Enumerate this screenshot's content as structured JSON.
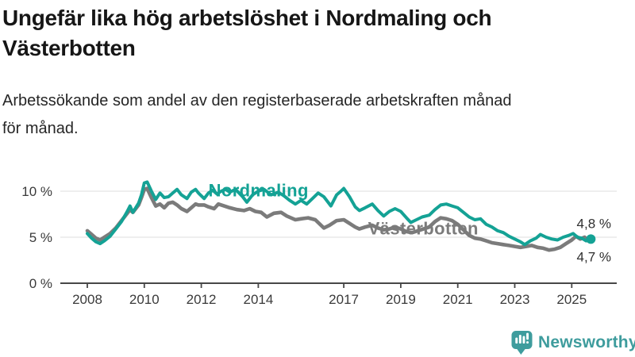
{
  "header": {
    "title_lines": [
      "Ungefär lika hög arbetslöshet i Nordmaling och",
      "Västerbotten"
    ],
    "subtitle_lines": [
      "Arbetssökande som andel av den registerbaserade arbetskraften månad",
      "för månad."
    ]
  },
  "footer": {
    "brand": "Newsworthy",
    "brand_color": "#3E9C9D",
    "logo_icon": "bar-chart-speech-bubble-icon"
  },
  "chart_data": {
    "type": "line",
    "title": "Ungefär lika hög arbetslöshet i Nordmaling och Västerbotten",
    "subtitle": "Arbetssökande som andel av den registerbaserade arbetskraften månad för månad.",
    "grid": "horizontal",
    "legend": "inline-labels",
    "x_axis": {
      "ticks": [
        2008,
        2010,
        2012,
        2014,
        2017,
        2019,
        2021,
        2023,
        2025
      ],
      "range": [
        2007.9,
        2026.6
      ]
    },
    "y_axis": {
      "unit": "%",
      "tick_values": [
        0,
        5,
        10
      ],
      "tick_labels": [
        "0 %",
        "5 %",
        "10 %"
      ],
      "range": [
        0,
        11.5
      ]
    },
    "series": [
      {
        "name": "Västerbotten",
        "color": "#7B7B7B",
        "line_width": 4.6,
        "label_anchor": {
          "year": 2017.85,
          "value": 5.9
        },
        "end_value_label": "4,7 %",
        "end_label_side": "below",
        "end_dot": false,
        "points": [
          [
            2008.0,
            5.7
          ],
          [
            2008.15,
            5.3
          ],
          [
            2008.3,
            4.9
          ],
          [
            2008.45,
            4.7
          ],
          [
            2008.6,
            5.0
          ],
          [
            2008.8,
            5.4
          ],
          [
            2009.0,
            6.0
          ],
          [
            2009.2,
            6.8
          ],
          [
            2009.4,
            7.6
          ],
          [
            2009.5,
            8.0
          ],
          [
            2009.6,
            7.7
          ],
          [
            2009.8,
            8.5
          ],
          [
            2009.9,
            9.3
          ],
          [
            2010.0,
            10.2
          ],
          [
            2010.1,
            10.3
          ],
          [
            2010.25,
            9.3
          ],
          [
            2010.4,
            8.4
          ],
          [
            2010.55,
            8.6
          ],
          [
            2010.7,
            8.2
          ],
          [
            2010.85,
            8.7
          ],
          [
            2011.0,
            8.8
          ],
          [
            2011.15,
            8.5
          ],
          [
            2011.3,
            8.1
          ],
          [
            2011.5,
            7.8
          ],
          [
            2011.65,
            8.2
          ],
          [
            2011.8,
            8.6
          ],
          [
            2011.9,
            8.5
          ],
          [
            2012.1,
            8.5
          ],
          [
            2012.25,
            8.3
          ],
          [
            2012.45,
            8.1
          ],
          [
            2012.6,
            8.6
          ],
          [
            2012.8,
            8.4
          ],
          [
            2013.0,
            8.2
          ],
          [
            2013.25,
            8.0
          ],
          [
            2013.5,
            7.9
          ],
          [
            2013.7,
            8.1
          ],
          [
            2013.9,
            7.8
          ],
          [
            2014.1,
            7.7
          ],
          [
            2014.3,
            7.2
          ],
          [
            2014.55,
            7.6
          ],
          [
            2014.8,
            7.7
          ],
          [
            2015.0,
            7.3
          ],
          [
            2015.3,
            6.9
          ],
          [
            2015.5,
            7.0
          ],
          [
            2015.75,
            7.1
          ],
          [
            2016.0,
            6.9
          ],
          [
            2016.3,
            6.0
          ],
          [
            2016.5,
            6.3
          ],
          [
            2016.75,
            6.8
          ],
          [
            2017.0,
            6.9
          ],
          [
            2017.2,
            6.5
          ],
          [
            2017.4,
            6.1
          ],
          [
            2017.55,
            5.9
          ],
          [
            2017.75,
            6.1
          ],
          [
            2018.0,
            6.3
          ],
          [
            2018.2,
            6.0
          ],
          [
            2018.4,
            5.8
          ],
          [
            2018.6,
            5.9
          ],
          [
            2018.8,
            6.1
          ],
          [
            2019.0,
            5.9
          ],
          [
            2019.2,
            5.6
          ],
          [
            2019.4,
            5.5
          ],
          [
            2019.6,
            5.7
          ],
          [
            2019.8,
            5.9
          ],
          [
            2020.0,
            6.1
          ],
          [
            2020.2,
            6.7
          ],
          [
            2020.4,
            7.1
          ],
          [
            2020.6,
            7.0
          ],
          [
            2020.8,
            6.8
          ],
          [
            2021.0,
            6.4
          ],
          [
            2021.2,
            5.8
          ],
          [
            2021.4,
            5.2
          ],
          [
            2021.6,
            4.9
          ],
          [
            2021.8,
            4.8
          ],
          [
            2022.0,
            4.6
          ],
          [
            2022.2,
            4.4
          ],
          [
            2022.4,
            4.3
          ],
          [
            2022.6,
            4.2
          ],
          [
            2022.8,
            4.1
          ],
          [
            2023.0,
            4.0
          ],
          [
            2023.2,
            3.9
          ],
          [
            2023.4,
            4.0
          ],
          [
            2023.6,
            4.1
          ],
          [
            2023.8,
            3.9
          ],
          [
            2024.0,
            3.8
          ],
          [
            2024.2,
            3.6
          ],
          [
            2024.4,
            3.7
          ],
          [
            2024.6,
            3.9
          ],
          [
            2024.8,
            4.3
          ],
          [
            2025.0,
            4.7
          ],
          [
            2025.15,
            5.1
          ],
          [
            2025.3,
            4.8
          ],
          [
            2025.45,
            5.0
          ],
          [
            2025.58,
            4.6
          ],
          [
            2025.67,
            4.7
          ]
        ]
      },
      {
        "name": "Nordmaling",
        "color": "#14A295",
        "line_width": 4,
        "label_anchor": {
          "year": 2012.25,
          "value": 10.05
        },
        "end_value_label": "4,8 %",
        "end_label_side": "above",
        "end_dot": true,
        "points": [
          [
            2008.0,
            5.4
          ],
          [
            2008.15,
            4.9
          ],
          [
            2008.3,
            4.5
          ],
          [
            2008.45,
            4.3
          ],
          [
            2008.6,
            4.6
          ],
          [
            2008.8,
            5.1
          ],
          [
            2009.0,
            5.9
          ],
          [
            2009.2,
            6.7
          ],
          [
            2009.4,
            7.8
          ],
          [
            2009.5,
            8.4
          ],
          [
            2009.6,
            7.7
          ],
          [
            2009.8,
            8.7
          ],
          [
            2009.9,
            9.6
          ],
          [
            2010.0,
            10.9
          ],
          [
            2010.1,
            11.0
          ],
          [
            2010.25,
            10.0
          ],
          [
            2010.4,
            9.1
          ],
          [
            2010.55,
            9.8
          ],
          [
            2010.7,
            9.3
          ],
          [
            2010.85,
            9.4
          ],
          [
            2011.0,
            9.8
          ],
          [
            2011.15,
            10.2
          ],
          [
            2011.3,
            9.6
          ],
          [
            2011.5,
            9.2
          ],
          [
            2011.65,
            9.9
          ],
          [
            2011.8,
            10.2
          ],
          [
            2011.9,
            9.8
          ],
          [
            2012.1,
            9.2
          ],
          [
            2012.25,
            9.8
          ],
          [
            2012.4,
            10.1
          ],
          [
            2012.55,
            9.7
          ],
          [
            2012.7,
            10.0
          ],
          [
            2012.85,
            10.2
          ],
          [
            2013.0,
            9.9
          ],
          [
            2013.2,
            10.2
          ],
          [
            2013.45,
            9.4
          ],
          [
            2013.6,
            8.8
          ],
          [
            2013.8,
            9.6
          ],
          [
            2014.0,
            10.0
          ],
          [
            2014.2,
            10.2
          ],
          [
            2014.45,
            9.6
          ],
          [
            2014.7,
            9.9
          ],
          [
            2014.9,
            9.5
          ],
          [
            2015.1,
            9.0
          ],
          [
            2015.3,
            8.6
          ],
          [
            2015.5,
            9.0
          ],
          [
            2015.7,
            8.6
          ],
          [
            2015.9,
            9.2
          ],
          [
            2016.1,
            9.8
          ],
          [
            2016.3,
            9.4
          ],
          [
            2016.55,
            8.4
          ],
          [
            2016.75,
            9.6
          ],
          [
            2016.9,
            10.0
          ],
          [
            2017.0,
            10.3
          ],
          [
            2017.2,
            9.4
          ],
          [
            2017.4,
            8.3
          ],
          [
            2017.55,
            7.9
          ],
          [
            2017.75,
            8.2
          ],
          [
            2018.0,
            8.6
          ],
          [
            2018.2,
            7.9
          ],
          [
            2018.4,
            7.3
          ],
          [
            2018.6,
            7.8
          ],
          [
            2018.8,
            8.1
          ],
          [
            2019.0,
            7.8
          ],
          [
            2019.2,
            7.1
          ],
          [
            2019.35,
            6.6
          ],
          [
            2019.55,
            6.9
          ],
          [
            2019.75,
            7.2
          ],
          [
            2020.0,
            7.4
          ],
          [
            2020.2,
            8.0
          ],
          [
            2020.4,
            8.5
          ],
          [
            2020.6,
            8.6
          ],
          [
            2020.8,
            8.4
          ],
          [
            2021.0,
            8.2
          ],
          [
            2021.2,
            7.7
          ],
          [
            2021.4,
            7.2
          ],
          [
            2021.6,
            6.9
          ],
          [
            2021.8,
            7.0
          ],
          [
            2022.0,
            6.4
          ],
          [
            2022.2,
            6.1
          ],
          [
            2022.4,
            5.7
          ],
          [
            2022.6,
            5.5
          ],
          [
            2022.8,
            5.1
          ],
          [
            2023.0,
            4.8
          ],
          [
            2023.2,
            4.5
          ],
          [
            2023.35,
            4.2
          ],
          [
            2023.55,
            4.6
          ],
          [
            2023.75,
            4.9
          ],
          [
            2023.9,
            5.3
          ],
          [
            2024.1,
            5.0
          ],
          [
            2024.3,
            4.8
          ],
          [
            2024.5,
            4.7
          ],
          [
            2024.7,
            5.0
          ],
          [
            2024.9,
            5.2
          ],
          [
            2025.05,
            5.4
          ],
          [
            2025.2,
            5.0
          ],
          [
            2025.35,
            4.9
          ],
          [
            2025.5,
            4.6
          ],
          [
            2025.67,
            4.8
          ]
        ]
      }
    ]
  }
}
